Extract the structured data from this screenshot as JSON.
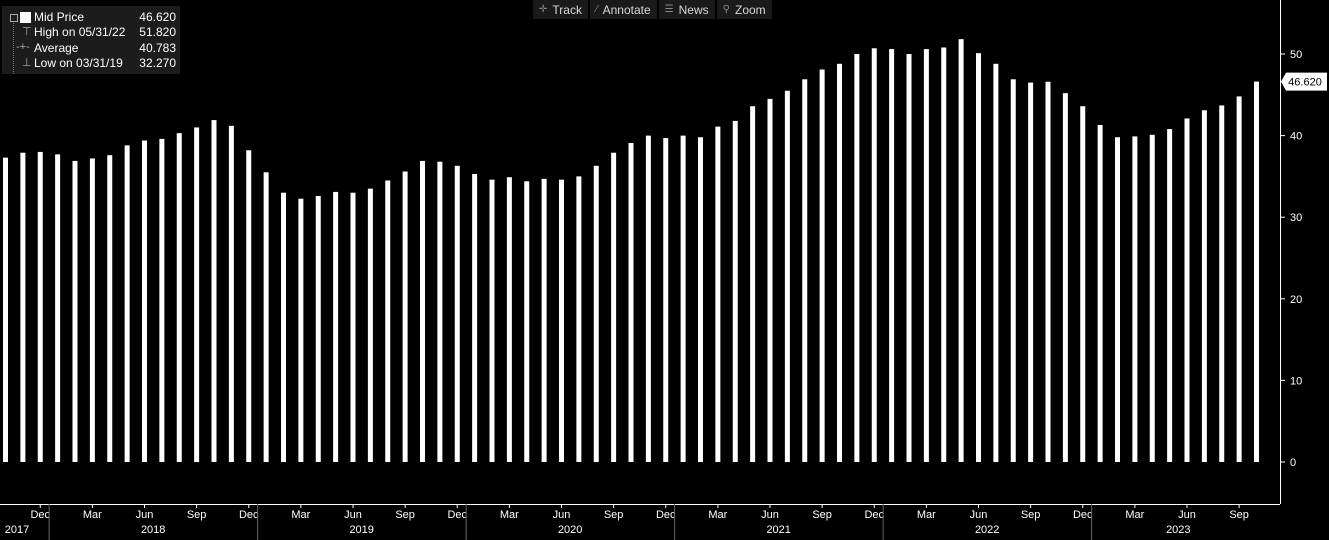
{
  "toolbar": {
    "track": {
      "label": "Track",
      "icon": "crosshair-icon"
    },
    "annotate": {
      "label": "Annotate",
      "icon": "pencil-icon"
    },
    "news": {
      "label": "News",
      "icon": "news-icon"
    },
    "zoom": {
      "label": "Zoom",
      "icon": "magnifier-icon"
    }
  },
  "legend": {
    "series": {
      "label": "Mid Price",
      "value": "46.620"
    },
    "high": {
      "label": "High on 05/31/22",
      "value": "51.820"
    },
    "average": {
      "label": "Average",
      "value": "40.783"
    },
    "low": {
      "label": "Low on 03/31/19",
      "value": "32.270"
    }
  },
  "last_value_tag": "46.620",
  "colors": {
    "background": "#000000",
    "bars": "#ffffff",
    "panel": "#1c1c1c",
    "axis": "#ffffff"
  },
  "chart_data": {
    "type": "bar",
    "categories": [
      "Oct 2017",
      "Nov 2017",
      "Dec 2017",
      "Jan 2018",
      "Feb 2018",
      "Mar 2018",
      "Apr 2018",
      "May 2018",
      "Jun 2018",
      "Jul 2018",
      "Aug 2018",
      "Sep 2018",
      "Oct 2018",
      "Nov 2018",
      "Dec 2018",
      "Jan 2019",
      "Feb 2019",
      "Mar 2019",
      "Apr 2019",
      "May 2019",
      "Jun 2019",
      "Jul 2019",
      "Aug 2019",
      "Sep 2019",
      "Oct 2019",
      "Nov 2019",
      "Dec 2019",
      "Jan 2020",
      "Feb 2020",
      "Mar 2020",
      "Apr 2020",
      "May 2020",
      "Jun 2020",
      "Jul 2020",
      "Aug 2020",
      "Sep 2020",
      "Oct 2020",
      "Nov 2020",
      "Dec 2020",
      "Jan 2021",
      "Feb 2021",
      "Mar 2021",
      "Apr 2021",
      "May 2021",
      "Jun 2021",
      "Jul 2021",
      "Aug 2021",
      "Sep 2021",
      "Oct 2021",
      "Nov 2021",
      "Dec 2021",
      "Jan 2022",
      "Feb 2022",
      "Mar 2022",
      "Apr 2022",
      "May 2022",
      "Jun 2022",
      "Jul 2022",
      "Aug 2022",
      "Sep 2022",
      "Oct 2022",
      "Nov 2022",
      "Dec 2022",
      "Jan 2023",
      "Feb 2023",
      "Mar 2023",
      "Apr 2023",
      "May 2023",
      "Jun 2023",
      "Jul 2023",
      "Aug 2023",
      "Sep 2023",
      "Oct 2023"
    ],
    "values": [
      37.3,
      37.9,
      38.0,
      37.7,
      36.9,
      37.2,
      37.6,
      38.8,
      39.4,
      39.6,
      40.3,
      41.0,
      41.9,
      41.2,
      38.2,
      35.5,
      33.0,
      32.27,
      32.6,
      33.1,
      33.0,
      33.5,
      34.5,
      35.6,
      36.9,
      36.8,
      36.3,
      35.3,
      34.6,
      34.9,
      34.4,
      34.7,
      34.6,
      35.0,
      36.3,
      37.9,
      39.1,
      40.0,
      39.7,
      40.0,
      39.8,
      41.1,
      41.8,
      43.6,
      44.5,
      45.5,
      46.9,
      48.1,
      48.8,
      50.0,
      50.7,
      50.6,
      50.0,
      50.6,
      50.8,
      51.82,
      50.1,
      48.8,
      46.9,
      46.5,
      46.6,
      45.2,
      43.6,
      41.3,
      39.8,
      39.9,
      40.1,
      40.8,
      42.1,
      43.1,
      43.7,
      44.8,
      46.62
    ],
    "month_ticks": [
      {
        "index": 2,
        "label": "Dec"
      },
      {
        "index": 5,
        "label": "Mar"
      },
      {
        "index": 8,
        "label": "Jun"
      },
      {
        "index": 11,
        "label": "Sep"
      },
      {
        "index": 14,
        "label": "Dec"
      },
      {
        "index": 17,
        "label": "Mar"
      },
      {
        "index": 20,
        "label": "Jun"
      },
      {
        "index": 23,
        "label": "Sep"
      },
      {
        "index": 26,
        "label": "Dec"
      },
      {
        "index": 29,
        "label": "Mar"
      },
      {
        "index": 32,
        "label": "Jun"
      },
      {
        "index": 35,
        "label": "Sep"
      },
      {
        "index": 38,
        "label": "Dec"
      },
      {
        "index": 41,
        "label": "Mar"
      },
      {
        "index": 44,
        "label": "Jun"
      },
      {
        "index": 47,
        "label": "Sep"
      },
      {
        "index": 50,
        "label": "Dec"
      },
      {
        "index": 53,
        "label": "Mar"
      },
      {
        "index": 56,
        "label": "Jun"
      },
      {
        "index": 59,
        "label": "Sep"
      },
      {
        "index": 62,
        "label": "Dec"
      },
      {
        "index": 65,
        "label": "Mar"
      },
      {
        "index": 68,
        "label": "Jun"
      },
      {
        "index": 71,
        "label": "Sep"
      }
    ],
    "year_labels": [
      {
        "year": "2017",
        "first_index": 0,
        "last_index": 2
      },
      {
        "year": "2018",
        "first_index": 3,
        "last_index": 14
      },
      {
        "year": "2019",
        "first_index": 15,
        "last_index": 26
      },
      {
        "year": "2020",
        "first_index": 27,
        "last_index": 38
      },
      {
        "year": "2021",
        "first_index": 39,
        "last_index": 50
      },
      {
        "year": "2022",
        "first_index": 51,
        "last_index": 62
      },
      {
        "year": "2023",
        "first_index": 63,
        "last_index": 72
      }
    ],
    "y_ticks": [
      "0",
      "10",
      "20",
      "30",
      "40",
      "50"
    ],
    "ylim": [
      -5,
      56
    ],
    "y_axis_side": "right",
    "grid": false,
    "legend_position": "top-left"
  }
}
